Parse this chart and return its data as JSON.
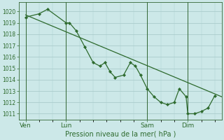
{
  "background_color": "#cce8e8",
  "grid_color": "#aacccc",
  "line_color": "#2d6a2d",
  "marker_color": "#2d6a2d",
  "xlabel": "Pression niveau de la mer( hPa )",
  "ylim": [
    1010.5,
    1020.8
  ],
  "yticks": [
    1011,
    1012,
    1013,
    1014,
    1015,
    1016,
    1017,
    1018,
    1019,
    1020
  ],
  "xtick_labels": [
    "Ven",
    "Lun",
    "Sam",
    "Dim"
  ],
  "xtick_positions": [
    0,
    24,
    72,
    96
  ],
  "xlim": [
    -4,
    116
  ],
  "vline_positions": [
    0,
    24,
    72,
    96
  ],
  "straight_line": {
    "x": [
      0,
      116
    ],
    "y": [
      1019.7,
      1012.5
    ]
  },
  "jagged_line": {
    "x": [
      0,
      8,
      13,
      24,
      26,
      30,
      35,
      40,
      44,
      47,
      50,
      53,
      58,
      62,
      65,
      68,
      72,
      76,
      80,
      84,
      88,
      91,
      95,
      96,
      100,
      104,
      108,
      112
    ],
    "y": [
      1019.5,
      1019.8,
      1020.2,
      1019.0,
      1019.0,
      1018.3,
      1016.9,
      1015.5,
      1015.2,
      1015.5,
      1014.7,
      1014.2,
      1014.4,
      1015.5,
      1015.2,
      1014.4,
      1013.2,
      1012.5,
      1012.0,
      1011.8,
      1012.0,
      1013.2,
      1012.5,
      1011.0,
      1011.0,
      1011.2,
      1011.5,
      1012.6
    ]
  }
}
